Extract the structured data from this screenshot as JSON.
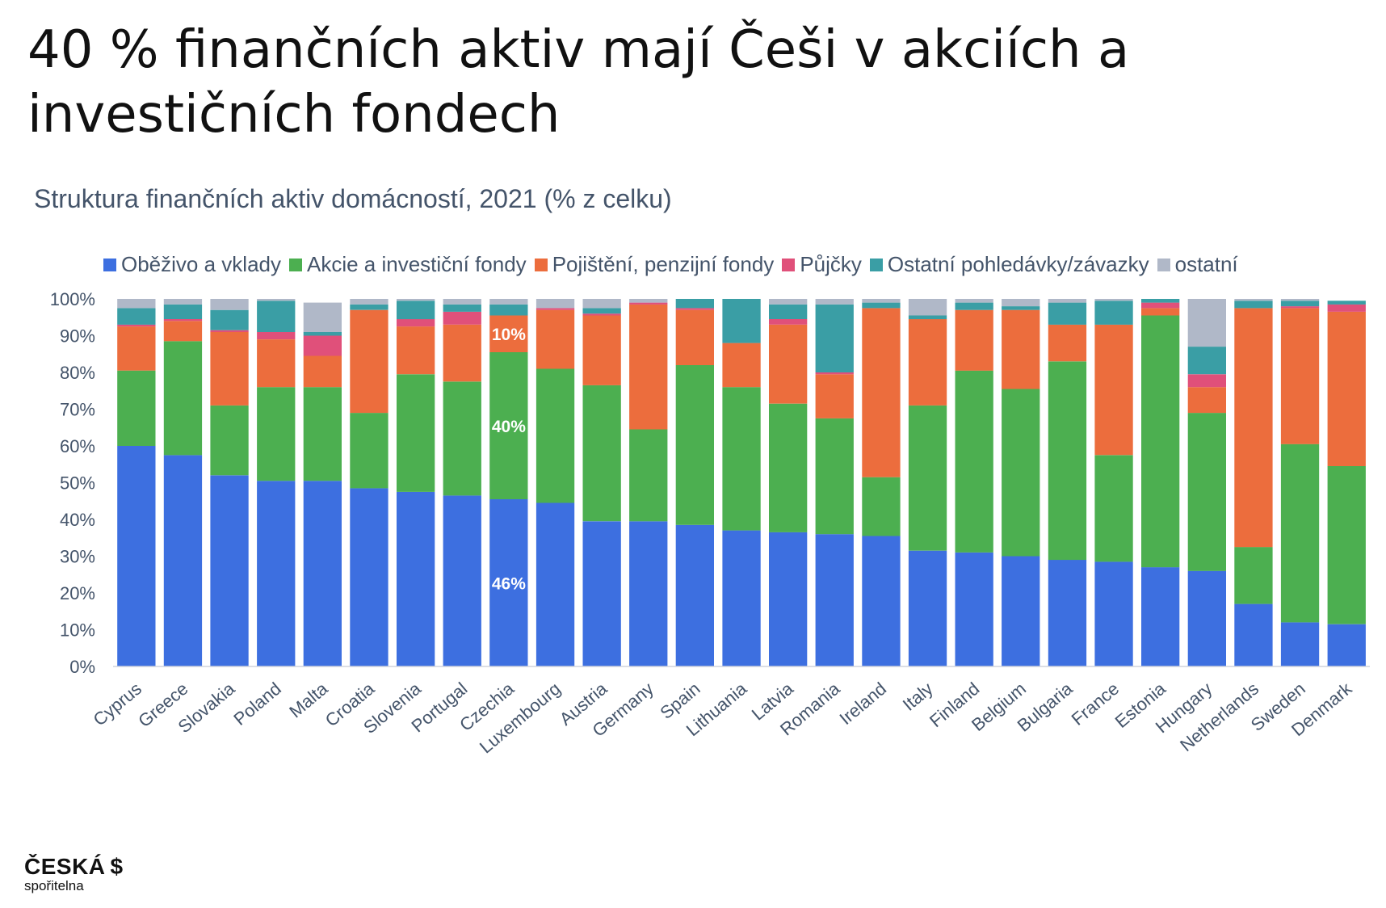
{
  "headline": "40 % finančních aktiv mají Češi v akciích a investičních fondech",
  "logo": {
    "brand": "ČESKÁ",
    "sub": "spořitelna",
    "mark": "$"
  },
  "chart_data": {
    "type": "bar",
    "stacked": true,
    "title": "Struktura finančních aktiv domácností, 2021 (% z celku)",
    "ylim": [
      0,
      100
    ],
    "y_ticks": [
      "0%",
      "10%",
      "20%",
      "30%",
      "40%",
      "50%",
      "60%",
      "70%",
      "80%",
      "90%",
      "100%"
    ],
    "grid": false,
    "legend_position": "top",
    "categories": [
      "Cyprus",
      "Greece",
      "Slovakia",
      "Poland",
      "Malta",
      "Croatia",
      "Slovenia",
      "Portugal",
      "Czechia",
      "Luxembourg",
      "Austria",
      "Germany",
      "Spain",
      "Lithuania",
      "Latvia",
      "Romania",
      "Ireland",
      "Italy",
      "Finland",
      "Belgium",
      "Bulgaria",
      "France",
      "Estonia",
      "Hungary",
      "Netherlands",
      "Sweden",
      "Denmark"
    ],
    "series": [
      {
        "name": "Oběživo a vklady",
        "color": "#3d6fe0",
        "values": [
          60,
          57.5,
          52,
          50.5,
          50.5,
          48.5,
          47.5,
          46.5,
          45.5,
          44.5,
          39.5,
          39.5,
          38.5,
          37,
          36.5,
          36,
          35.5,
          31.5,
          31,
          30,
          29,
          28.5,
          27,
          26,
          17,
          12,
          11.5
        ]
      },
      {
        "name": "Akcie a investiční fondy",
        "color": "#4caf50",
        "values": [
          20.5,
          31,
          19,
          25.5,
          25.5,
          20.5,
          32,
          31,
          40,
          36.5,
          37,
          25,
          43.5,
          39,
          35,
          31.5,
          16,
          39.5,
          49.5,
          45.5,
          54,
          29,
          68.5,
          43,
          15.5,
          48.5,
          43
        ]
      },
      {
        "name": "Pojištění, penzijní fondy",
        "color": "#ec6d3d",
        "values": [
          12,
          5.5,
          20,
          13,
          8.5,
          28,
          13,
          15.5,
          10,
          16,
          19,
          34,
          15,
          12,
          21.5,
          12,
          46,
          23.5,
          16.5,
          21.5,
          10,
          35.5,
          2,
          7,
          65,
          37,
          42
        ]
      },
      {
        "name": "Půjčky",
        "color": "#e0507a",
        "values": [
          0.5,
          0.5,
          0.5,
          2,
          5.5,
          0,
          2,
          3.5,
          0,
          0.5,
          0.5,
          0.5,
          0.5,
          0,
          1.5,
          0.5,
          0,
          0,
          0,
          0,
          0,
          0,
          1.5,
          3.5,
          0,
          0.5,
          2
        ]
      },
      {
        "name": "Ostatní pohledávky/závazky",
        "color": "#3a9ea5",
        "values": [
          4.5,
          4,
          5.5,
          8.5,
          1,
          1.5,
          5,
          2,
          3,
          0,
          1.5,
          0,
          2.5,
          12,
          4,
          18.5,
          1.5,
          1,
          2,
          1,
          6,
          6.5,
          1,
          7.5,
          2,
          1.5,
          1
        ]
      },
      {
        "name": "ostatní",
        "color": "#b0b8c8",
        "values": [
          2.5,
          1.5,
          3,
          0.5,
          8,
          1.5,
          0.5,
          1.5,
          1.5,
          2.5,
          2.5,
          1,
          0,
          0,
          1.5,
          1.5,
          1,
          4.5,
          1,
          2,
          1,
          0.5,
          0,
          13,
          0.5,
          0.5,
          0
        ]
      }
    ],
    "annotations": [
      {
        "category": "Czechia",
        "series": "Oběživo a vklady",
        "text": "46%"
      },
      {
        "category": "Czechia",
        "series": "Akcie a investiční fondy",
        "text": "40%"
      },
      {
        "category": "Czechia",
        "series": "Pojištění, penzijní fondy",
        "text": "10%"
      }
    ]
  }
}
